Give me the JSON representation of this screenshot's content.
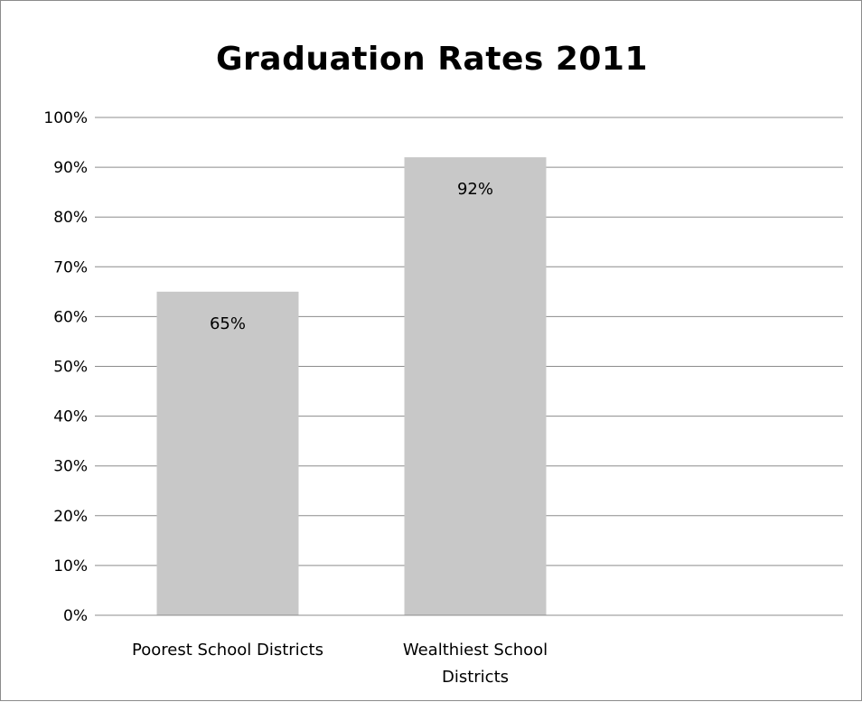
{
  "chart_data": {
    "type": "bar",
    "title": "Graduation Rates 2011",
    "xlabel": "",
    "ylabel": "",
    "categories": [
      [
        "Poorest School Districts"
      ],
      [
        "Wealthiest School",
        "Districts"
      ]
    ],
    "values": [
      0.65,
      0.92
    ],
    "data_labels": [
      "65%",
      "92%"
    ],
    "ylim": [
      0,
      1.0
    ],
    "yticks": [
      0,
      0.1,
      0.2,
      0.3,
      0.4,
      0.5,
      0.6,
      0.7,
      0.8,
      0.9,
      1.0
    ],
    "ytick_labels": [
      "0%",
      "10%",
      "20%",
      "30%",
      "40%",
      "50%",
      "60%",
      "70%",
      "80%",
      "90%",
      "100%"
    ],
    "grid": true,
    "legend": "none",
    "colors": {
      "bar": "#c8c8c8",
      "grid": "#8c8c8c",
      "axis": "#8c8c8c"
    }
  }
}
